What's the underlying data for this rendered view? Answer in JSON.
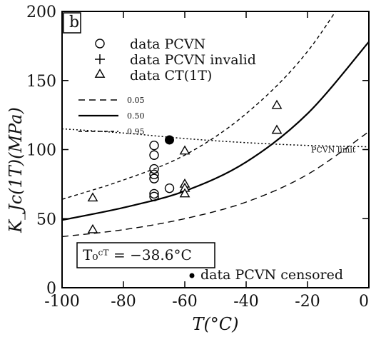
{
  "chart_data": {
    "type": "scatter",
    "panel_label": "b",
    "xlabel": "T(°C)",
    "ylabel": "K_Jc(1T)(MPa)",
    "xlim": [
      -100,
      0
    ],
    "ylim": [
      0,
      200
    ],
    "xticks": [
      -100,
      -80,
      -60,
      -40,
      -20,
      0
    ],
    "yticks": [
      0,
      50,
      100,
      150,
      200
    ],
    "legend": {
      "placement": "top-left",
      "entries": [
        {
          "key": "pcvn",
          "marker": "circle",
          "label": "data PCVN"
        },
        {
          "key": "pcvn_invalid",
          "marker": "plus",
          "label": "data PCVN invalid"
        },
        {
          "key": "ct",
          "marker": "triangle",
          "label": "data CT(1T)"
        },
        {
          "key": "q05",
          "line": "dashed",
          "label": "0.05"
        },
        {
          "key": "q50",
          "line": "solid",
          "label": "0.50"
        },
        {
          "key": "q95",
          "line": "short-dashed",
          "label": "0.95"
        }
      ]
    },
    "series": [
      {
        "key": "pcvn",
        "marker": "circle",
        "points": [
          {
            "x": -70,
            "y": 103
          },
          {
            "x": -70,
            "y": 96
          },
          {
            "x": -70,
            "y": 86
          },
          {
            "x": -70,
            "y": 82
          },
          {
            "x": -70,
            "y": 79
          },
          {
            "x": -70,
            "y": 68
          },
          {
            "x": -70,
            "y": 66
          },
          {
            "x": -65,
            "y": 72
          }
        ]
      },
      {
        "key": "ct",
        "marker": "triangle",
        "points": [
          {
            "x": -90,
            "y": 65
          },
          {
            "x": -90,
            "y": 42
          },
          {
            "x": -60,
            "y": 99
          },
          {
            "x": -60,
            "y": 75
          },
          {
            "x": -60,
            "y": 72
          },
          {
            "x": -60,
            "y": 68
          },
          {
            "x": -30,
            "y": 132
          },
          {
            "x": -30,
            "y": 114
          }
        ]
      },
      {
        "key": "censored",
        "marker": "filled-circle",
        "points": [
          {
            "x": -65,
            "y": 107
          }
        ]
      }
    ],
    "curves": {
      "q05": [
        [
          -100,
          37
        ],
        [
          -80,
          42
        ],
        [
          -60,
          50
        ],
        [
          -40,
          62
        ],
        [
          -20,
          82
        ],
        [
          0,
          113
        ]
      ],
      "q50": [
        [
          -100,
          49
        ],
        [
          -80,
          58
        ],
        [
          -60,
          70
        ],
        [
          -40,
          91
        ],
        [
          -20,
          126
        ],
        [
          0,
          178
        ]
      ],
      "q95": [
        [
          -100,
          64
        ],
        [
          -80,
          78
        ],
        [
          -60,
          96
        ],
        [
          -40,
          126
        ],
        [
          -20,
          171
        ],
        [
          0,
          238
        ]
      ],
      "pcvn_limit": [
        [
          -100,
          115
        ],
        [
          -80,
          112
        ],
        [
          -60,
          108
        ],
        [
          -40,
          105
        ],
        [
          -20,
          103
        ],
        [
          0,
          102
        ]
      ]
    },
    "annotations": {
      "limit_label": "PCVN limit",
      "t0_box": "T₀ᶜᵀ = −38.6°C",
      "censored_label": "data PCVN censored"
    },
    "grid": false
  }
}
